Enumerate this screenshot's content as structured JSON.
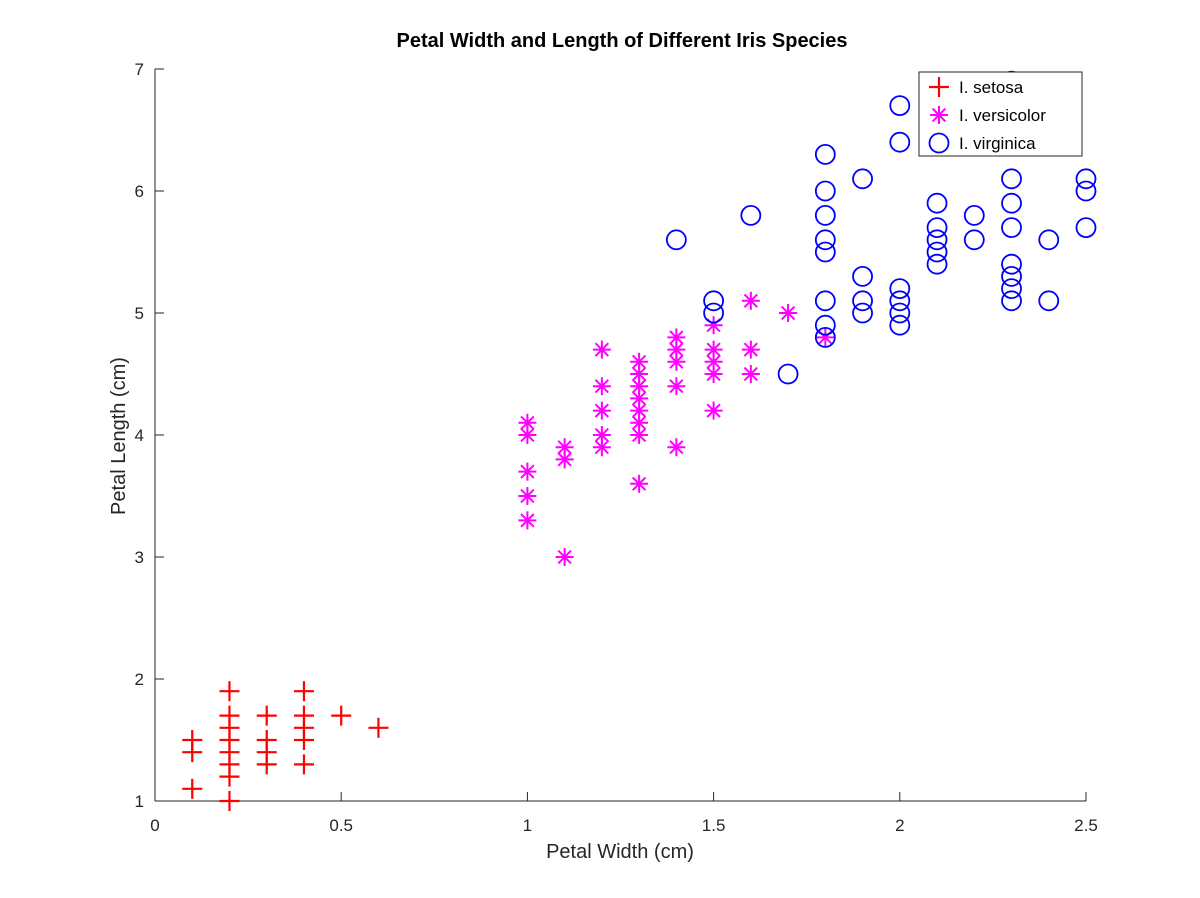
{
  "chart_data": {
    "type": "scatter",
    "title": "Petal Width and Length of Different Iris Species",
    "xlabel": "Petal Width (cm)",
    "ylabel": "Petal Length (cm)",
    "xlim": [
      0,
      2.5
    ],
    "ylim": [
      1,
      7
    ],
    "xticks": [
      0,
      0.5,
      1,
      1.5,
      2,
      2.5
    ],
    "xtick_labels": [
      "0",
      "0.5",
      "1",
      "1.5",
      "2",
      "2.5"
    ],
    "yticks": [
      1,
      2,
      3,
      4,
      5,
      6,
      7
    ],
    "ytick_labels": [
      "1",
      "2",
      "3",
      "4",
      "5",
      "6",
      "7"
    ],
    "grid": false,
    "legend_position": "top-right",
    "series": [
      {
        "name": "I. setosa",
        "marker": "plus",
        "color": "#ff0000",
        "points": [
          [
            0.1,
            1.1
          ],
          [
            0.1,
            1.4
          ],
          [
            0.1,
            1.5
          ],
          [
            0.2,
            1.0
          ],
          [
            0.2,
            1.2
          ],
          [
            0.2,
            1.3
          ],
          [
            0.2,
            1.4
          ],
          [
            0.2,
            1.5
          ],
          [
            0.2,
            1.6
          ],
          [
            0.2,
            1.7
          ],
          [
            0.2,
            1.9
          ],
          [
            0.3,
            1.3
          ],
          [
            0.3,
            1.4
          ],
          [
            0.3,
            1.5
          ],
          [
            0.3,
            1.7
          ],
          [
            0.4,
            1.3
          ],
          [
            0.4,
            1.5
          ],
          [
            0.4,
            1.6
          ],
          [
            0.4,
            1.7
          ],
          [
            0.4,
            1.9
          ],
          [
            0.5,
            1.7
          ],
          [
            0.6,
            1.6
          ]
        ]
      },
      {
        "name": "I. versicolor",
        "marker": "asterisk",
        "color": "#ff00ff",
        "points": [
          [
            1.0,
            3.3
          ],
          [
            1.0,
            3.5
          ],
          [
            1.0,
            3.7
          ],
          [
            1.0,
            4.0
          ],
          [
            1.0,
            4.1
          ],
          [
            1.1,
            3.0
          ],
          [
            1.1,
            3.8
          ],
          [
            1.1,
            3.9
          ],
          [
            1.2,
            3.9
          ],
          [
            1.2,
            4.0
          ],
          [
            1.2,
            4.2
          ],
          [
            1.2,
            4.4
          ],
          [
            1.2,
            4.7
          ],
          [
            1.3,
            3.6
          ],
          [
            1.3,
            4.0
          ],
          [
            1.3,
            4.1
          ],
          [
            1.3,
            4.2
          ],
          [
            1.3,
            4.3
          ],
          [
            1.3,
            4.4
          ],
          [
            1.3,
            4.5
          ],
          [
            1.3,
            4.6
          ],
          [
            1.4,
            3.9
          ],
          [
            1.4,
            4.4
          ],
          [
            1.4,
            4.6
          ],
          [
            1.4,
            4.7
          ],
          [
            1.4,
            4.8
          ],
          [
            1.5,
            4.2
          ],
          [
            1.5,
            4.5
          ],
          [
            1.5,
            4.6
          ],
          [
            1.5,
            4.7
          ],
          [
            1.5,
            4.9
          ],
          [
            1.6,
            4.5
          ],
          [
            1.6,
            4.7
          ],
          [
            1.6,
            5.1
          ],
          [
            1.7,
            5.0
          ],
          [
            1.8,
            4.8
          ]
        ]
      },
      {
        "name": "I. virginica",
        "marker": "circle",
        "color": "#0000ff",
        "points": [
          [
            1.4,
            5.6
          ],
          [
            1.5,
            5.0
          ],
          [
            1.5,
            5.1
          ],
          [
            1.6,
            5.8
          ],
          [
            1.7,
            4.5
          ],
          [
            1.8,
            4.8
          ],
          [
            1.8,
            4.9
          ],
          [
            1.8,
            5.1
          ],
          [
            1.8,
            5.5
          ],
          [
            1.8,
            5.6
          ],
          [
            1.8,
            5.8
          ],
          [
            1.8,
            6.0
          ],
          [
            1.8,
            6.3
          ],
          [
            1.9,
            5.0
          ],
          [
            1.9,
            5.1
          ],
          [
            1.9,
            5.3
          ],
          [
            1.9,
            6.1
          ],
          [
            2.0,
            4.9
          ],
          [
            2.0,
            5.0
          ],
          [
            2.0,
            5.1
          ],
          [
            2.0,
            5.2
          ],
          [
            2.0,
            6.4
          ],
          [
            2.0,
            6.7
          ],
          [
            2.1,
            5.4
          ],
          [
            2.1,
            5.5
          ],
          [
            2.1,
            5.6
          ],
          [
            2.1,
            5.7
          ],
          [
            2.1,
            5.9
          ],
          [
            2.2,
            5.6
          ],
          [
            2.2,
            5.8
          ],
          [
            2.3,
            5.1
          ],
          [
            2.3,
            5.2
          ],
          [
            2.3,
            5.3
          ],
          [
            2.3,
            5.4
          ],
          [
            2.3,
            5.7
          ],
          [
            2.3,
            5.9
          ],
          [
            2.3,
            6.1
          ],
          [
            2.3,
            6.9
          ],
          [
            2.4,
            5.1
          ],
          [
            2.4,
            5.6
          ],
          [
            2.5,
            5.7
          ],
          [
            2.5,
            6.0
          ],
          [
            2.5,
            6.1
          ]
        ]
      }
    ]
  }
}
